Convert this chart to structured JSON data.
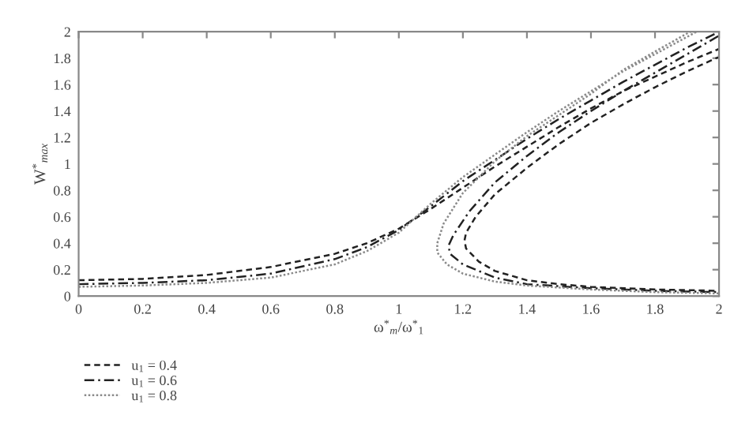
{
  "chart_data": {
    "type": "line",
    "xlabel": "ω$^{*}$$_{m}$/ω$^{*}$$_{1}$",
    "ylabel": "W$^{*}$$_{max}$",
    "xlim": [
      0,
      2
    ],
    "ylim": [
      0,
      2
    ],
    "xticks": [
      0,
      0.2,
      0.4,
      0.6,
      0.8,
      1,
      1.2,
      1.4,
      1.6,
      1.8,
      2
    ],
    "yticks": [
      0,
      0.2,
      0.4,
      0.6,
      0.8,
      1,
      1.2,
      1.4,
      1.6,
      1.8,
      2
    ],
    "grid": false,
    "legend": "bottom left",
    "marker": "none",
    "series": [
      {
        "name": "u$_{1}$ = 0.4",
        "color": "#222222",
        "line_style": "dashed",
        "x": [
          0,
          0.2,
          0.4,
          0.6,
          0.8,
          0.9,
          1.0,
          1.1,
          1.2,
          1.3,
          1.4,
          1.5,
          1.6,
          1.7,
          1.8,
          1.9,
          2.0,
          2.0,
          1.9,
          1.8,
          1.7,
          1.6,
          1.5,
          1.4,
          1.3,
          1.24,
          1.21,
          1.205,
          1.21,
          1.25,
          1.3,
          1.4,
          1.5,
          1.6,
          1.8,
          2.0
        ],
        "values": [
          0.12,
          0.13,
          0.16,
          0.22,
          0.32,
          0.4,
          0.51,
          0.66,
          0.82,
          0.98,
          1.13,
          1.28,
          1.42,
          1.55,
          1.66,
          1.77,
          1.87,
          1.81,
          1.7,
          1.58,
          1.45,
          1.31,
          1.15,
          0.97,
          0.77,
          0.6,
          0.48,
          0.42,
          0.36,
          0.26,
          0.19,
          0.12,
          0.09,
          0.07,
          0.05,
          0.04
        ]
      },
      {
        "name": "u$_{1}$ = 0.6",
        "color": "#222222",
        "line_style": "dashdot",
        "x": [
          0,
          0.2,
          0.4,
          0.6,
          0.8,
          0.9,
          1.0,
          1.1,
          1.2,
          1.3,
          1.4,
          1.5,
          1.6,
          1.7,
          1.8,
          1.9,
          2.0,
          2.0,
          1.9,
          1.8,
          1.7,
          1.6,
          1.5,
          1.4,
          1.3,
          1.22,
          1.17,
          1.155,
          1.16,
          1.2,
          1.3,
          1.4,
          1.6,
          1.8,
          2.0
        ],
        "values": [
          0.09,
          0.1,
          0.12,
          0.17,
          0.28,
          0.37,
          0.5,
          0.68,
          0.87,
          1.03,
          1.19,
          1.34,
          1.48,
          1.62,
          1.75,
          1.88,
          2.0,
          1.97,
          1.83,
          1.69,
          1.55,
          1.4,
          1.24,
          1.06,
          0.86,
          0.64,
          0.46,
          0.38,
          0.32,
          0.24,
          0.14,
          0.09,
          0.06,
          0.04,
          0.03
        ]
      },
      {
        "name": "u$_{1}$ = 0.8",
        "color": "#8a8a8a",
        "line_style": "dotted",
        "x": [
          0,
          0.2,
          0.4,
          0.6,
          0.8,
          0.9,
          1.0,
          1.1,
          1.2,
          1.3,
          1.4,
          1.5,
          1.6,
          1.7,
          1.8,
          1.93,
          1.91,
          1.8,
          1.7,
          1.6,
          1.5,
          1.4,
          1.3,
          1.2,
          1.14,
          1.12,
          1.12,
          1.15,
          1.2,
          1.3,
          1.4,
          1.6,
          1.8,
          2.0
        ],
        "values": [
          0.07,
          0.08,
          0.1,
          0.14,
          0.24,
          0.34,
          0.48,
          0.7,
          0.9,
          1.07,
          1.24,
          1.4,
          1.55,
          1.7,
          1.83,
          2.0,
          2.0,
          1.85,
          1.71,
          1.53,
          1.37,
          1.21,
          1.02,
          0.78,
          0.55,
          0.4,
          0.33,
          0.24,
          0.17,
          0.11,
          0.08,
          0.05,
          0.03,
          0.02
        ]
      }
    ]
  }
}
